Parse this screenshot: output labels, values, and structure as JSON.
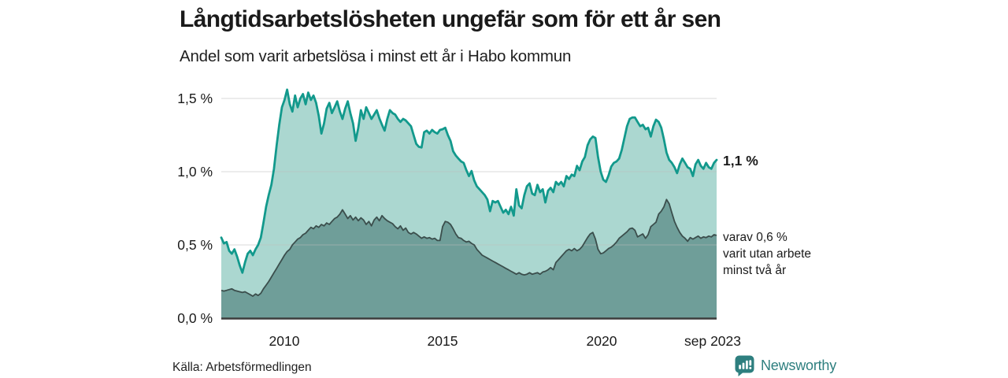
{
  "header": {
    "title": "Långtidsarbetslösheten ungefär som för ett år sen",
    "subtitle": "Andel som varit arbetslösa i minst ett år i Habo kommun"
  },
  "annotations": {
    "last_total_label": "1,1 %",
    "two_year_note": "varav 0,6 %\nvarit utan arbete\nminst två år"
  },
  "footer": {
    "source": "Källa: Arbetsförmedlingen",
    "brand": "Newsworthy"
  },
  "icons": {
    "brand_icon": "bar-chart-speech-bubble-icon"
  },
  "colors": {
    "total_line": "#12998c",
    "total_fill": "#abd7d0",
    "two_year_line": "#3b4e4c",
    "two_year_fill": "#6f9e99",
    "baseline": "#3d3d3d",
    "grid": "#bdbdbd",
    "brand": "#2e7f7f",
    "text": "#1a1a1a"
  },
  "chart_data": {
    "type": "area",
    "title": "Långtidsarbetslösheten ungefär som för ett år sen",
    "subtitle": "Andel som varit arbetslösa i minst ett år i Habo kommun",
    "unit": "%",
    "frequency": "monthly",
    "x_start": "jan 2008",
    "x_end": "sep 2023",
    "xticks": [
      "2010",
      "2015",
      "2020",
      "sep 2023"
    ],
    "yticks": [
      "1,5 %",
      "1,0 %",
      "0,5 %",
      "0,0 %"
    ],
    "ylim": [
      0,
      1.5
    ],
    "grid": true,
    "legend": "annotated-at-line-end",
    "series": [
      {
        "name": "Andel arbetslösa minst ett år",
        "end_label": "1,1 %",
        "last_value": 1.1,
        "values": [
          0.55,
          0.51,
          0.52,
          0.46,
          0.44,
          0.47,
          0.42,
          0.36,
          0.31,
          0.38,
          0.44,
          0.46,
          0.43,
          0.47,
          0.5,
          0.55,
          0.65,
          0.76,
          0.84,
          0.91,
          1.02,
          1.18,
          1.32,
          1.44,
          1.49,
          1.56,
          1.46,
          1.41,
          1.52,
          1.44,
          1.5,
          1.53,
          1.46,
          1.54,
          1.49,
          1.52,
          1.47,
          1.38,
          1.26,
          1.33,
          1.43,
          1.47,
          1.4,
          1.44,
          1.48,
          1.41,
          1.36,
          1.43,
          1.48,
          1.4,
          1.33,
          1.21,
          1.3,
          1.42,
          1.36,
          1.44,
          1.4,
          1.36,
          1.39,
          1.42,
          1.365,
          1.32,
          1.28,
          1.36,
          1.42,
          1.4,
          1.39,
          1.36,
          1.34,
          1.36,
          1.35,
          1.33,
          1.31,
          1.25,
          1.19,
          1.17,
          1.165,
          1.27,
          1.28,
          1.26,
          1.285,
          1.27,
          1.26,
          1.285,
          1.29,
          1.3,
          1.25,
          1.21,
          1.14,
          1.11,
          1.09,
          1.07,
          1.06,
          1.01,
          0.97,
          1.005,
          0.94,
          0.9,
          0.88,
          0.86,
          0.84,
          0.81,
          0.73,
          0.8,
          0.79,
          0.8,
          0.76,
          0.72,
          0.74,
          0.71,
          0.76,
          0.7,
          0.88,
          0.77,
          0.75,
          0.84,
          0.9,
          0.92,
          0.85,
          0.84,
          0.91,
          0.86,
          0.88,
          0.79,
          0.87,
          0.89,
          0.86,
          0.93,
          0.91,
          0.93,
          0.9,
          0.97,
          0.95,
          0.98,
          0.97,
          1.04,
          1.01,
          1.07,
          1.1,
          1.18,
          1.22,
          1.24,
          1.23,
          1.1,
          1.0,
          0.945,
          0.93,
          0.975,
          1.035,
          1.06,
          1.07,
          1.09,
          1.15,
          1.23,
          1.31,
          1.36,
          1.37,
          1.37,
          1.34,
          1.31,
          1.32,
          1.29,
          1.3,
          1.24,
          1.31,
          1.355,
          1.34,
          1.3,
          1.22,
          1.13,
          1.08,
          1.06,
          1.03,
          0.99,
          1.05,
          1.09,
          1.06,
          1.03,
          1.02,
          0.97,
          1.05,
          1.08,
          1.04,
          1.02,
          1.06,
          1.03,
          1.02,
          1.06,
          1.08
        ]
      },
      {
        "name": "varav utan arbete minst två år",
        "end_label": "0,6 %",
        "last_value": 0.6,
        "values": [
          0.19,
          0.185,
          0.19,
          0.195,
          0.2,
          0.19,
          0.185,
          0.18,
          0.175,
          0.18,
          0.17,
          0.16,
          0.15,
          0.165,
          0.155,
          0.17,
          0.2,
          0.225,
          0.25,
          0.28,
          0.31,
          0.34,
          0.37,
          0.4,
          0.43,
          0.455,
          0.47,
          0.5,
          0.52,
          0.54,
          0.55,
          0.57,
          0.58,
          0.6,
          0.62,
          0.61,
          0.63,
          0.62,
          0.64,
          0.63,
          0.65,
          0.64,
          0.66,
          0.68,
          0.69,
          0.71,
          0.74,
          0.71,
          0.68,
          0.7,
          0.67,
          0.69,
          0.665,
          0.685,
          0.67,
          0.64,
          0.66,
          0.63,
          0.67,
          0.69,
          0.665,
          0.7,
          0.68,
          0.665,
          0.655,
          0.645,
          0.625,
          0.61,
          0.63,
          0.6,
          0.615,
          0.585,
          0.575,
          0.585,
          0.575,
          0.56,
          0.545,
          0.555,
          0.545,
          0.55,
          0.54,
          0.545,
          0.53,
          0.53,
          0.625,
          0.66,
          0.655,
          0.64,
          0.61,
          0.575,
          0.55,
          0.545,
          0.53,
          0.52,
          0.525,
          0.51,
          0.5,
          0.47,
          0.45,
          0.43,
          0.42,
          0.41,
          0.4,
          0.39,
          0.38,
          0.37,
          0.36,
          0.35,
          0.34,
          0.33,
          0.32,
          0.31,
          0.3,
          0.31,
          0.3,
          0.295,
          0.3,
          0.31,
          0.3,
          0.305,
          0.31,
          0.3,
          0.315,
          0.32,
          0.33,
          0.345,
          0.33,
          0.38,
          0.4,
          0.42,
          0.44,
          0.46,
          0.47,
          0.46,
          0.475,
          0.46,
          0.47,
          0.49,
          0.52,
          0.55,
          0.575,
          0.585,
          0.54,
          0.47,
          0.44,
          0.445,
          0.46,
          0.475,
          0.485,
          0.5,
          0.52,
          0.545,
          0.56,
          0.575,
          0.59,
          0.61,
          0.615,
          0.6,
          0.555,
          0.565,
          0.575,
          0.545,
          0.57,
          0.625,
          0.64,
          0.655,
          0.71,
          0.73,
          0.76,
          0.81,
          0.78,
          0.72,
          0.66,
          0.62,
          0.585,
          0.56,
          0.545,
          0.525,
          0.55,
          0.54,
          0.55,
          0.56,
          0.545,
          0.555,
          0.55,
          0.56,
          0.555,
          0.57,
          0.565
        ]
      }
    ]
  }
}
